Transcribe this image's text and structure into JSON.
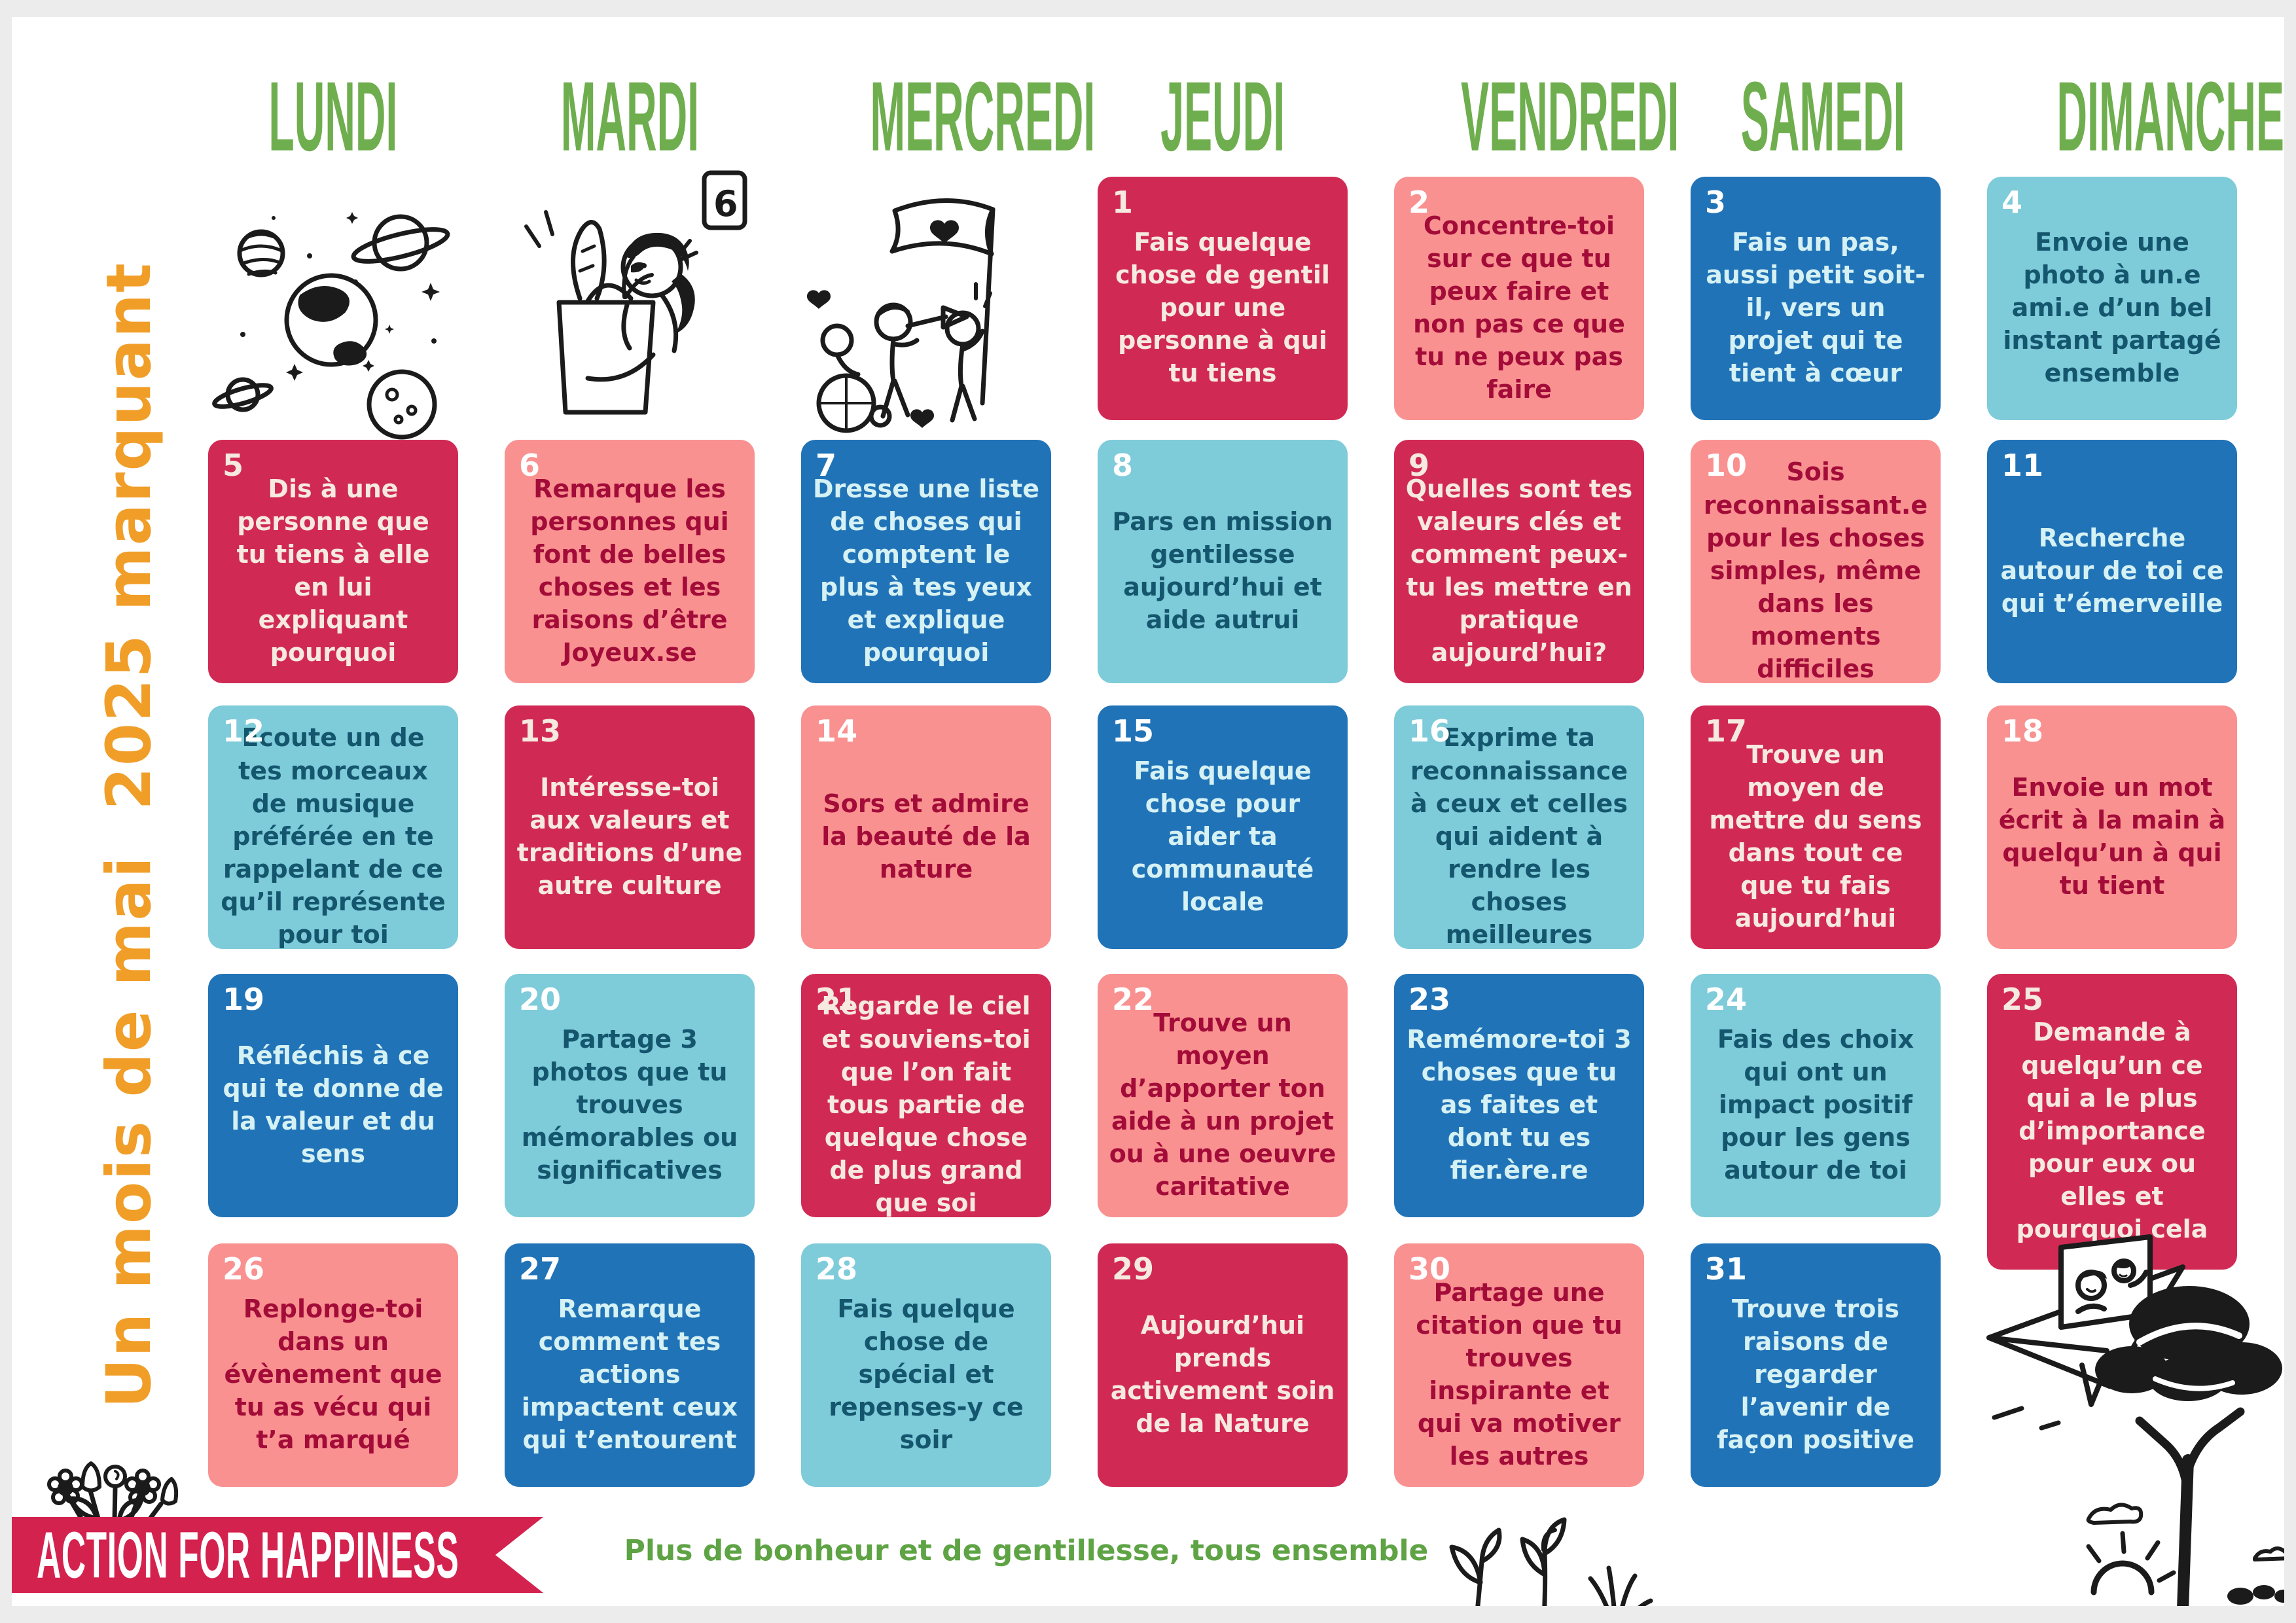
{
  "title_vertical": "Un mois de mai  2025 marquant",
  "days": [
    "LUNDI",
    "MARDI",
    "MERCREDI",
    "JEUDI",
    "VENDREDI",
    "SAMEDI",
    "DIMANCHE"
  ],
  "cells": [
    {
      "num": 1,
      "col": 4,
      "row": 1,
      "color": "crimson",
      "text": "Fais quelque chose de gentil pour une personne à qui tu tiens"
    },
    {
      "num": 2,
      "col": 5,
      "row": 1,
      "color": "salmon",
      "text": "Concentre-toi sur ce que tu peux faire et non pas ce que tu ne peux pas faire"
    },
    {
      "num": 3,
      "col": 6,
      "row": 1,
      "color": "blue",
      "text": "Fais un pas, aussi petit soit-il, vers un projet qui te tient à cœur"
    },
    {
      "num": 4,
      "col": 7,
      "row": 1,
      "color": "teal",
      "text": "Envoie une photo à un.e ami.e d’un bel instant partagé ensemble"
    },
    {
      "num": 5,
      "col": 1,
      "row": 2,
      "color": "crimson",
      "text": "Dis à une personne que tu tiens à elle en lui expliquant pourquoi"
    },
    {
      "num": 6,
      "col": 2,
      "row": 2,
      "color": "salmon",
      "text": "Remarque les personnes qui font de belles choses et les raisons d’être Joyeux.se"
    },
    {
      "num": 7,
      "col": 3,
      "row": 2,
      "color": "blue",
      "text": "Dresse une liste de choses qui comptent le plus à tes yeux et explique pourquoi"
    },
    {
      "num": 8,
      "col": 4,
      "row": 2,
      "color": "teal",
      "text": "Pars en mission gentilesse aujourd’hui et aide autrui"
    },
    {
      "num": 9,
      "col": 5,
      "row": 2,
      "color": "crimson",
      "text": "Quelles sont tes valeurs clés et comment peux-tu les mettre en pratique aujourd’hui?"
    },
    {
      "num": 10,
      "col": 6,
      "row": 2,
      "color": "salmon",
      "text": "Sois reconnaissant.e pour les choses simples, même dans les moments difficiles"
    },
    {
      "num": 11,
      "col": 7,
      "row": 2,
      "color": "blue",
      "text": "Recherche autour de toi ce qui t’émerveille"
    },
    {
      "num": 12,
      "col": 1,
      "row": 3,
      "color": "teal",
      "text": "Ecoute un de tes morceaux de musique préférée en te rappelant de ce qu’il représente pour toi"
    },
    {
      "num": 13,
      "col": 2,
      "row": 3,
      "color": "crimson",
      "text": "Intéresse-toi aux valeurs et traditions d’une autre culture"
    },
    {
      "num": 14,
      "col": 3,
      "row": 3,
      "color": "salmon",
      "text": "Sors et admire la beauté de la nature"
    },
    {
      "num": 15,
      "col": 4,
      "row": 3,
      "color": "blue",
      "text": "Fais quelque chose pour aider ta communauté locale"
    },
    {
      "num": 16,
      "col": 5,
      "row": 3,
      "color": "teal",
      "text": "Exprime ta reconnaissance à ceux et celles qui aident à rendre les choses meilleures"
    },
    {
      "num": 17,
      "col": 6,
      "row": 3,
      "color": "crimson",
      "text": "Trouve un moyen de mettre du sens dans tout ce que tu fais aujourd’hui"
    },
    {
      "num": 18,
      "col": 7,
      "row": 3,
      "color": "salmon",
      "text": "Envoie un mot écrit à la main à quelqu’un à qui tu tient"
    },
    {
      "num": 19,
      "col": 1,
      "row": 4,
      "color": "blue",
      "text": "Réfléchis à ce qui te donne de la valeur et du sens"
    },
    {
      "num": 20,
      "col": 2,
      "row": 4,
      "color": "teal",
      "text": "Partage 3 photos que tu trouves mémorables ou significatives"
    },
    {
      "num": 21,
      "col": 3,
      "row": 4,
      "color": "crimson",
      "text": "Regarde le ciel et souviens-toi que l’on fait tous partie de quelque chose de plus grand que soi"
    },
    {
      "num": 22,
      "col": 4,
      "row": 4,
      "color": "salmon",
      "text": "Trouve un moyen d’apporter ton aide à un projet ou à une oeuvre caritative"
    },
    {
      "num": 23,
      "col": 5,
      "row": 4,
      "color": "blue",
      "text": "Remémore-toi 3 choses que tu as faites et dont tu es fier.ère.re"
    },
    {
      "num": 24,
      "col": 6,
      "row": 4,
      "color": "teal",
      "text": "Fais des choix qui ont un impact positif pour les gens autour de toi"
    },
    {
      "num": 25,
      "col": 7,
      "row": 4,
      "color": "crimson",
      "text": "Demande à quelqu’un ce qui a le plus d’importance pour eux ou elles et pourquoi cela"
    },
    {
      "num": 26,
      "col": 1,
      "row": 5,
      "color": "salmon",
      "text": "Replonge-toi dans un évènement que tu as vécu qui t’a marqué"
    },
    {
      "num": 27,
      "col": 2,
      "row": 5,
      "color": "blue",
      "text": "Remarque comment tes actions impactent ceux qui t’entourent"
    },
    {
      "num": 28,
      "col": 3,
      "row": 5,
      "color": "teal",
      "text": "Fais quelque chose de spécial et repenses-y ce soir"
    },
    {
      "num": 29,
      "col": 4,
      "row": 5,
      "color": "crimson",
      "text": "Aujourd’hui prends activement soin de la Nature"
    },
    {
      "num": 30,
      "col": 5,
      "row": 5,
      "color": "salmon",
      "text": "Partage une citation que tu trouves inspirante et qui va motiver les autres"
    },
    {
      "num": 31,
      "col": 6,
      "row": 5,
      "color": "blue",
      "text": "Trouve trois raisons de regarder l’avenir de façon positive"
    }
  ],
  "footer": {
    "brand": "ACTION FOR HAPPINESS",
    "slogan": "Plus de bonheur et de gentillesse, tous ensemble"
  },
  "illustrations": {
    "frame_digit": "6",
    "names": [
      "planets-space",
      "grocery-person",
      "band-parade",
      "flower-bouquet",
      "sprouts",
      "paper-plane-photo",
      "tree-sunrise"
    ]
  },
  "palette": {
    "crimson": "#d02a54",
    "salmon": "#f99191",
    "blue": "#2173b7",
    "teal": "#7ecbd9",
    "crimson_text": "#f6e9e0",
    "salmon_text": "#a30c38",
    "blue_text": "#d5f1f4",
    "teal_text": "#14566e",
    "header_green": "#6fae4e",
    "slogan_green": "#5ea344",
    "orange": "#f09e28",
    "ribbon_red": "#d4224f",
    "ink": "#1b1b1b"
  }
}
